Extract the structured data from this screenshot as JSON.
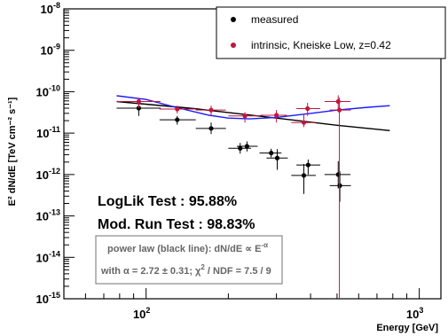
{
  "chart_data": {
    "type": "scatter",
    "xscale": "log",
    "yscale": "log",
    "xlim": [
      50,
      1200
    ],
    "ylim": [
      1e-15,
      1e-08
    ],
    "xlabel": "Energy [GeV]",
    "ylabel": "E² dN/dE [TeV cm⁻² s⁻¹]",
    "x_ticks": [
      {
        "value": 100,
        "base": "10",
        "exp": "2"
      },
      {
        "value": 1000,
        "base": "10",
        "exp": "3"
      }
    ],
    "y_ticks": [
      {
        "value": 1e-08,
        "base": "10",
        "exp": "-8"
      },
      {
        "value": 1e-09,
        "base": "10",
        "exp": "-9"
      },
      {
        "value": 1e-10,
        "base": "10",
        "exp": "-10"
      },
      {
        "value": 1e-11,
        "base": "10",
        "exp": "-11"
      },
      {
        "value": 1e-12,
        "base": "10",
        "exp": "-12"
      },
      {
        "value": 1e-13,
        "base": "10",
        "exp": "-13"
      },
      {
        "value": 1e-14,
        "base": "10",
        "exp": "-14"
      },
      {
        "value": 1e-15,
        "base": "10",
        "exp": "-15"
      }
    ],
    "series": [
      {
        "name": "measured",
        "color": "#000000",
        "points": [
          {
            "x": 94,
            "y": 4e-11,
            "xlo": 78,
            "xhi": 113,
            "ylo": 2.6e-11,
            "yhi": 6e-11
          },
          {
            "x": 130,
            "y": 2.1e-11,
            "xlo": 112,
            "xhi": 152,
            "ylo": 1.6e-11,
            "yhi": 2.6e-11
          },
          {
            "x": 173,
            "y": 1.3e-11,
            "xlo": 152,
            "xhi": 196,
            "ylo": 9.5e-12,
            "yhi": 1.8e-11
          },
          {
            "x": 221,
            "y": 4.3e-12,
            "xlo": 200,
            "xhi": 242,
            "ylo": 3.2e-12,
            "yhi": 5.8e-12
          },
          {
            "x": 234,
            "y": 4.8e-12,
            "xlo": 215,
            "xhi": 256,
            "ylo": 3.6e-12,
            "yhi": 6.3e-12
          },
          {
            "x": 287,
            "y": 3.3e-12,
            "xlo": 260,
            "xhi": 313,
            "ylo": 2.6e-12,
            "yhi": 4.2e-12
          },
          {
            "x": 302,
            "y": 2.5e-12,
            "xlo": 276,
            "xhi": 330,
            "ylo": 1.3e-12,
            "yhi": 4.1e-12
          },
          {
            "x": 378,
            "y": 9.5e-13,
            "xlo": 340,
            "xhi": 418,
            "ylo": 3.4e-13,
            "yhi": 1.8e-12
          },
          {
            "x": 392,
            "y": 1.7e-12,
            "xlo": 355,
            "xhi": 434,
            "ylo": 1e-12,
            "yhi": 2.3e-12
          },
          {
            "x": 505,
            "y": 1e-12,
            "xlo": 450,
            "xhi": 560,
            "ylo": 4.6e-13,
            "yhi": 2.1e-12
          },
          {
            "x": 512,
            "y": 5.4e-13,
            "xlo": 470,
            "xhi": 562,
            "ylo": 2.2e-13,
            "yhi": 1.2e-12
          }
        ]
      },
      {
        "name": "intrinsic, Kneiske Low, z=0.42",
        "color": "#c0163e",
        "points": [
          {
            "x": 94,
            "y": 5.8e-11,
            "xlo": 78,
            "xhi": 113,
            "ylo": 4e-11,
            "yhi": 7e-11
          },
          {
            "x": 130,
            "y": 3.8e-11,
            "xlo": 112,
            "xhi": 152,
            "ylo": 3e-11,
            "yhi": 4.6e-11
          },
          {
            "x": 173,
            "y": 3.6e-11,
            "xlo": 152,
            "xhi": 196,
            "ylo": 2.6e-11,
            "yhi": 4.6e-11
          },
          {
            "x": 230,
            "y": 2.6e-11,
            "xlo": 200,
            "xhi": 258,
            "ylo": 1.8e-11,
            "yhi": 3.2e-11
          },
          {
            "x": 300,
            "y": 2.7e-11,
            "xlo": 262,
            "xhi": 328,
            "ylo": 1.8e-11,
            "yhi": 3.6e-11
          },
          {
            "x": 378,
            "y": 1.8e-11,
            "xlo": 340,
            "xhi": 418,
            "ylo": 1.4e-11,
            "yhi": 2.9e-11
          },
          {
            "x": 390,
            "y": 3.9e-11,
            "xlo": 355,
            "xhi": 434,
            "ylo": 2.6e-11,
            "yhi": 5.4e-11
          },
          {
            "x": 505,
            "y": 5.8e-11,
            "xlo": 450,
            "xhi": 560,
            "ylo": 3.5e-11,
            "yhi": 8.2e-11
          },
          {
            "x": 510,
            "y": 3.6e-11,
            "xlo": 470,
            "xhi": 562,
            "ylo": 1e-15,
            "yhi": 7.2e-11
          }
        ]
      }
    ],
    "curves": [
      {
        "role": "power-law fit (black line)",
        "color": "#000000",
        "points": [
          [
            78,
            5.8e-11
          ],
          [
            150,
            3.9e-11
          ],
          [
            300,
            2.3e-11
          ],
          [
            500,
            1.55e-11
          ],
          [
            780,
            1.15e-11
          ]
        ]
      },
      {
        "role": "blue curve",
        "color": "#1a1aff",
        "points": [
          [
            78,
            8e-11
          ],
          [
            100,
            6.5e-11
          ],
          [
            130,
            4.1e-11
          ],
          [
            170,
            2.7e-11
          ],
          [
            200,
            2.3e-11
          ],
          [
            240,
            2.2e-11
          ],
          [
            300,
            2.4e-11
          ],
          [
            400,
            3e-11
          ],
          [
            500,
            3.6e-11
          ],
          [
            650,
            4.2e-11
          ],
          [
            780,
            4.6e-11
          ]
        ]
      }
    ],
    "legend": {
      "position": "top-right",
      "entries": [
        "measured",
        "intrinsic, Kneiske Low, z=0.42"
      ]
    },
    "annotations": {
      "loglik": "LogLik Test : 95.88%",
      "modrun": "Mod. Run Test : 98.83%",
      "fit_line1_a": "power law (black line): dN/dE ∝ E",
      "fit_line1_exp": "-α",
      "fit_line2_a": "with α = 2.72 ± 0.31; χ",
      "fit_line2_sup": "2",
      "fit_line2_b": " / NDF = 7.5 / 9"
    }
  }
}
